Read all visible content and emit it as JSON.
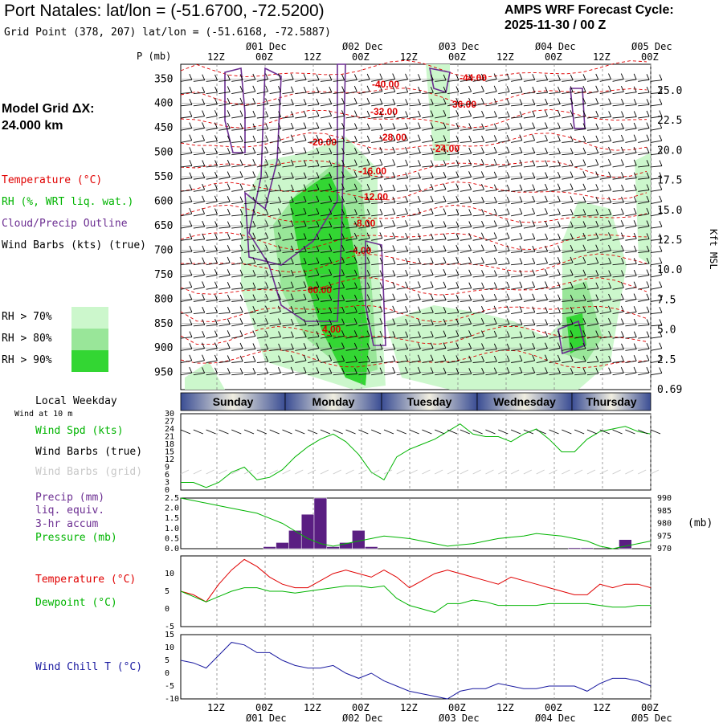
{
  "header": {
    "title": "Port Natales:  lat/lon = (-51.6700, -72.5200)",
    "grid_point": "Grid Point (378, 207) lat/lon = (-51.6168, -72.5887)",
    "cycle_line1": "AMPS WRF Forecast Cycle:",
    "cycle_line2": "2025-11-30 / 00  Z"
  },
  "model_grid": {
    "label": "Model Grid ΔX:",
    "value": " 24.000 km"
  },
  "legend": {
    "temperature": "Temperature (°C)",
    "rh": "RH (%, WRT liq. wat.)",
    "cloud": "Cloud/Precip Outline",
    "wind": "Wind Barbs (kts) (true)",
    "rh70": "RH > 70%",
    "rh80": "RH > 80%",
    "rh90": "RH > 90%",
    "rh_colors": [
      "#ccf7cc",
      "#99e699",
      "#33d633"
    ]
  },
  "time_axis": {
    "hour_labels": [
      "12Z",
      "00Z",
      "12Z",
      "00Z",
      "12Z",
      "00Z",
      "12Z",
      "00Z",
      "12Z",
      "00Z"
    ],
    "date_labels": [
      "01 Dec",
      "02 Dec",
      "03 Dec",
      "04 Dec",
      "05 Dec"
    ],
    "weekdays": [
      "Sunday",
      "Monday",
      "Tuesday",
      "Wednesday",
      "Thursday"
    ]
  },
  "chart_data": [
    {
      "type": "heatmap",
      "name": "time-height cross section",
      "y_title": "P (mb)",
      "y2_title": "Kft MSL",
      "pressure_ticks": [
        "350",
        "400",
        "450",
        "500",
        "550",
        "600",
        "650",
        "700",
        "750",
        "800",
        "850",
        "900",
        "950"
      ],
      "height_ticks": [
        "25.0",
        "22.5",
        "20.0",
        "17.5",
        "15.0",
        "12.5",
        "10.0",
        "7.5",
        "5.0",
        "2.5",
        "0.69"
      ],
      "temperature_contour_labels": [
        "-44.00",
        "-40.00",
        "-36.00",
        "-32.00",
        "-28.00",
        "-24.00",
        "-20.00",
        "-16.00",
        "-12.00",
        "-8.00",
        "-4.00",
        "00.00",
        "4.00"
      ]
    },
    {
      "type": "line",
      "name": "Local Weekday / Wind",
      "label_weekday": "Local Weekday",
      "label_wind10": "Wind at 10 m",
      "label_speed": "Wind Spd (kts)",
      "label_barbs_true": "Wind Barbs (true)",
      "label_barbs_grid": "Wind Barbs (grid)",
      "yticks": [
        "30",
        "27",
        "24",
        "21",
        "18",
        "15",
        "12",
        "9",
        "6",
        "3",
        "0"
      ],
      "ylim": [
        0,
        30
      ],
      "wind_speed": [
        3,
        3,
        1,
        3,
        7,
        9,
        4,
        5,
        8,
        13,
        17,
        20,
        22,
        19,
        14,
        7,
        4,
        13,
        16,
        18,
        20,
        23,
        26,
        22,
        21,
        21,
        19,
        22,
        24,
        20,
        15,
        15,
        20,
        23,
        24,
        25,
        23,
        22
      ]
    },
    {
      "type": "bar",
      "name": "Precip / Pressure",
      "label_precip": "Precip (mm)",
      "label_liq": "liq. equiv.",
      "label_accum": "3-hr accum",
      "label_pressure": "Pressure (mb)",
      "y2_unit": "(mb)",
      "yticks": [
        "2.5",
        "2.0",
        "1.5",
        "1.0",
        "0.5",
        "0.0"
      ],
      "y2ticks": [
        "990",
        "985",
        "980",
        "975",
        "970"
      ],
      "ylim": [
        0,
        2.5
      ],
      "y2lim": [
        970,
        990
      ],
      "precip": [
        0,
        0,
        0,
        0,
        0,
        0,
        0,
        0.1,
        0.3,
        0.9,
        1.7,
        2.5,
        0.1,
        0.3,
        0.9,
        0.1,
        0,
        0,
        0,
        0,
        0,
        0,
        0,
        0,
        0,
        0,
        0,
        0,
        0,
        0,
        0,
        0.05,
        0.05,
        0,
        0,
        0.45,
        0,
        0
      ],
      "pressure": [
        990,
        989,
        988,
        987,
        986,
        985,
        984,
        982,
        980,
        977,
        974,
        972,
        971,
        972,
        973,
        974,
        975,
        974.5,
        974,
        973,
        972,
        971,
        971.5,
        972,
        973,
        974,
        974.5,
        975,
        976,
        975.5,
        975,
        974,
        973,
        971,
        970,
        971,
        972,
        973
      ]
    },
    {
      "type": "line",
      "name": "Temperature / Dewpoint",
      "label_temp": "Temperature (°C)",
      "label_dew": "Dewpoint (°C)",
      "yticks": [
        "10",
        "5",
        "0",
        "-5"
      ],
      "ylim": [
        -5,
        15
      ],
      "temperature": [
        5,
        4,
        2,
        7,
        11,
        14,
        12,
        9,
        7,
        6,
        6,
        8,
        10,
        11,
        10,
        9,
        11,
        9,
        6,
        8,
        10,
        11,
        10,
        9,
        8,
        7,
        9,
        8,
        7,
        6,
        5,
        4,
        4,
        7,
        6,
        7,
        7,
        6
      ],
      "dewpoint": [
        5,
        3.5,
        2,
        3.5,
        5,
        6,
        6,
        5,
        5,
        4.5,
        5,
        5.5,
        6,
        6.5,
        6.5,
        6,
        6.5,
        3,
        1,
        0,
        -1,
        1.5,
        1.5,
        2.5,
        2,
        1,
        1,
        1,
        1,
        1.5,
        1.5,
        1.5,
        1.5,
        1,
        0.5,
        0.5,
        1,
        1
      ]
    },
    {
      "type": "line",
      "name": "Wind Chill",
      "label": "Wind Chill T (°C)",
      "yticks": [
        "15",
        "10",
        "5",
        "0",
        "-5",
        "-10"
      ],
      "ylim": [
        -10,
        15
      ],
      "wind_chill": [
        5,
        4,
        2,
        7,
        12,
        11,
        8,
        8,
        5,
        3,
        2,
        2,
        3,
        0,
        -2,
        0,
        -3,
        -5,
        -7,
        -8,
        -9,
        -10,
        -7,
        -6,
        -6,
        -4,
        -5,
        -6,
        -6,
        -5,
        -5,
        -5,
        -7,
        -4,
        -2,
        -2,
        -3,
        -5
      ]
    }
  ]
}
